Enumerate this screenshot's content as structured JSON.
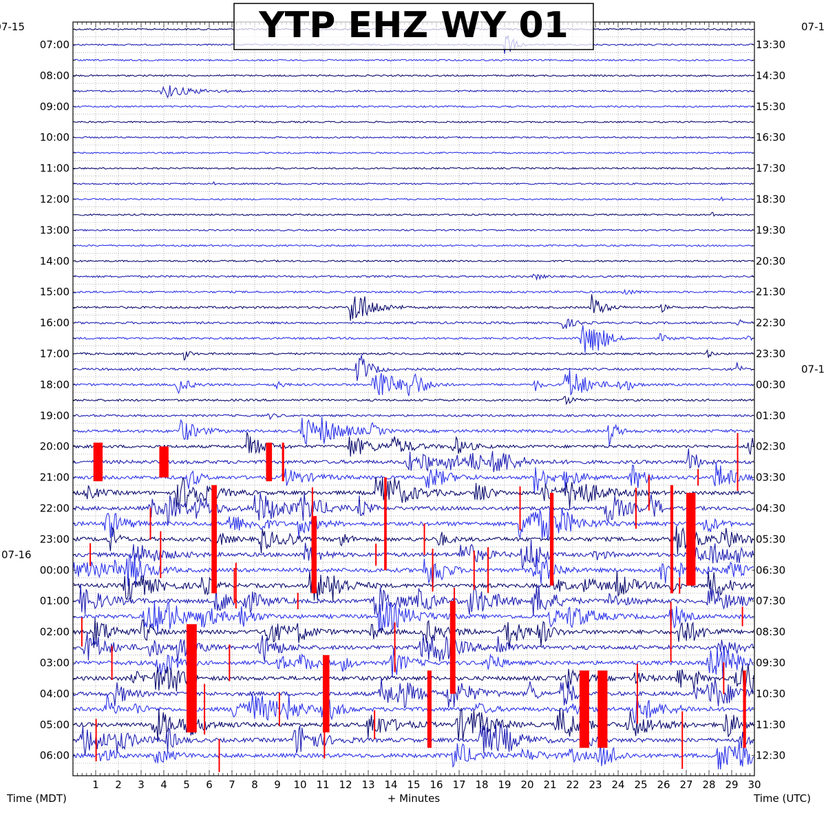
{
  "chart_data": {
    "type": "line",
    "title": "YTP EHZ WY 01",
    "xlabel": "+ Minutes",
    "left_axis_label": "Time (MDT)",
    "right_axis_label": "Time (UTC)",
    "x_ticks": [
      "1",
      "2",
      "3",
      "4",
      "5",
      "6",
      "7",
      "8",
      "9",
      "10",
      "11",
      "12",
      "13",
      "14",
      "15",
      "16",
      "17",
      "18",
      "19",
      "20",
      "21",
      "22",
      "23",
      "24",
      "25",
      "26",
      "27",
      "28",
      "29",
      "30"
    ],
    "xlim": [
      0,
      30
    ],
    "traces_per_hour": 2,
    "left_start_date": "07-15",
    "left_dates": [
      {
        "row": 0,
        "label": "07-15"
      },
      {
        "row": 34,
        "label": "07-16"
      }
    ],
    "right_dates": [
      {
        "row": 0,
        "label": "07-1"
      },
      {
        "row": 22,
        "label": "07-1"
      }
    ],
    "left_hours": [
      "07:00",
      "08:00",
      "09:00",
      "10:00",
      "11:00",
      "12:00",
      "13:00",
      "14:00",
      "15:00",
      "16:00",
      "17:00",
      "18:00",
      "19:00",
      "20:00",
      "21:00",
      "22:00",
      "23:00",
      "00:00",
      "01:00",
      "02:00",
      "03:00",
      "04:00",
      "05:00",
      "06:00"
    ],
    "right_hours": [
      "13:30",
      "14:30",
      "15:30",
      "16:30",
      "17:30",
      "18:30",
      "19:30",
      "20:30",
      "21:30",
      "22:30",
      "23:30",
      "00:30",
      "01:30",
      "02:30",
      "03:30",
      "04:30",
      "05:30",
      "06:30",
      "07:30",
      "08:30",
      "09:30",
      "10:30",
      "11:30",
      "12:30"
    ],
    "trace_colors": [
      "#0a0a6e",
      "#1f1fb4",
      "#2c33e8"
    ],
    "clip_color": "#ff0000",
    "activity_by_hour": [
      0.1,
      0.12,
      0.15,
      0.1,
      0.1,
      0.1,
      0.12,
      0.15,
      0.25,
      0.3,
      0.25,
      0.35,
      0.3,
      0.6,
      0.8,
      0.9,
      1.0,
      1.0,
      1.0,
      1.0,
      1.0,
      1.0,
      1.0,
      1.0
    ],
    "events": [
      {
        "row": 4,
        "minute": 3.9,
        "amp": 1.0,
        "dur": 1.5
      },
      {
        "row": 10,
        "minute": 6.2,
        "amp": 0.8,
        "dur": 0.1
      },
      {
        "row": 11,
        "minute": 28.5,
        "amp": 0.9,
        "dur": 0.1
      },
      {
        "row": 12,
        "minute": 28.1,
        "amp": 0.8,
        "dur": 0.1
      },
      {
        "row": 1,
        "minute": 19.0,
        "amp": 2.5,
        "dur": 0.4
      },
      {
        "row": 18,
        "minute": 12.2,
        "amp": 3.5,
        "dur": 1.0
      },
      {
        "row": 18,
        "minute": 22.8,
        "amp": 2.0,
        "dur": 0.6
      },
      {
        "row": 20,
        "minute": 22.4,
        "amp": 3.5,
        "dur": 0.8
      },
      {
        "row": 20,
        "minute": 23.0,
        "amp": 1.2,
        "dur": 0.6
      },
      {
        "row": 22,
        "minute": 12.5,
        "amp": 3.0,
        "dur": 0.6
      },
      {
        "row": 23,
        "minute": 13.2,
        "amp": 3.5,
        "dur": 1.0
      },
      {
        "row": 23,
        "minute": 14.6,
        "amp": 3.0,
        "dur": 0.8
      },
      {
        "row": 23,
        "minute": 4.6,
        "amp": 1.2,
        "dur": 0.6
      },
      {
        "row": 23,
        "minute": 21.6,
        "amp": 3.5,
        "dur": 1.0
      },
      {
        "row": 23,
        "minute": 8.8,
        "amp": 0.8,
        "dur": 0.4
      }
    ],
    "clips": [
      {
        "row": 28,
        "minute": 0.9,
        "height": 2.5
      },
      {
        "row": 28,
        "minute": 3.8,
        "height": 2.0
      },
      {
        "row": 28,
        "minute": 8.5,
        "height": 2.5
      },
      {
        "row": 28,
        "minute": 9.2,
        "height": 2.5
      },
      {
        "row": 33,
        "minute": 6.1,
        "height": 7.0
      },
      {
        "row": 33,
        "minute": 21.0,
        "height": 6.0
      },
      {
        "row": 33,
        "minute": 26.3,
        "height": 7.0
      },
      {
        "row": 33,
        "minute": 27.0,
        "height": 6.0
      },
      {
        "row": 34,
        "minute": 10.5,
        "height": 5.0
      },
      {
        "row": 32,
        "minute": 13.7,
        "height": 6.0
      },
      {
        "row": 40,
        "minute": 16.6,
        "height": 6.0
      },
      {
        "row": 42,
        "minute": 5.0,
        "height": 7.0
      },
      {
        "row": 43,
        "minute": 11.0,
        "height": 5.0
      },
      {
        "row": 44,
        "minute": 15.6,
        "height": 5.0
      },
      {
        "row": 44,
        "minute": 22.3,
        "height": 5.0
      },
      {
        "row": 44,
        "minute": 23.1,
        "height": 5.0
      },
      {
        "row": 44,
        "minute": 29.5,
        "height": 5.0
      }
    ]
  }
}
